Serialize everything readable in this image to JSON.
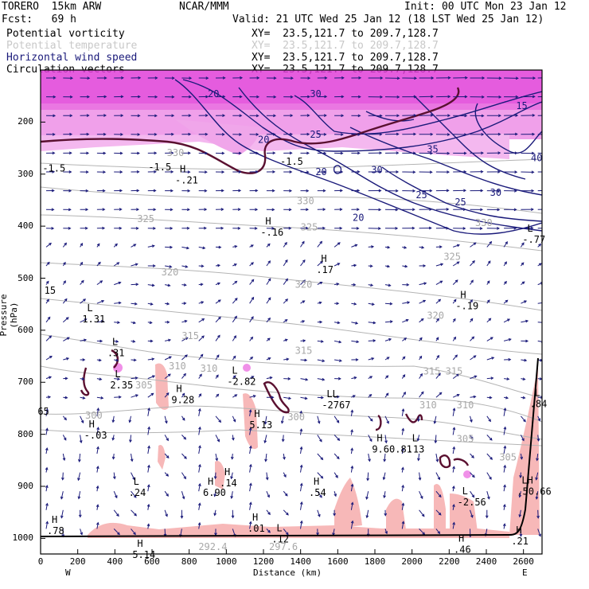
{
  "header": {
    "model": "TORERO  15km ARW",
    "center": "NCAR/MMM",
    "init": "Init: 00 UTC Mon 23 Jan 12",
    "fcst": "Fcst:   69 h",
    "valid": "Valid: 21 UTC Wed 25 Jan 12 (18 LST Wed 25 Jan 12)",
    "fields": [
      {
        "name": "Potential vorticity",
        "xy": "XY=  23.5,121.7 to 209.7,128.7",
        "color": "#000000"
      },
      {
        "name": "Potential temperature",
        "xy": "XY=  23.5,121.7 to 209.7,128.7",
        "color": "#c8c8c8"
      },
      {
        "name": "Horizontal wind speed",
        "xy": "XY=  23.5,121.7 to 209.7,128.7",
        "color": "#1a1a7a"
      },
      {
        "name": "Circulation vectors",
        "xy": "XY=  23.5,121.7 to 209.7,128.7",
        "color": "#000000"
      }
    ]
  },
  "chart_data": {
    "type": "cross-section",
    "ylabel": "Pressure (hPa)",
    "xlabel": "Distance (km)",
    "x_ticks": [
      0,
      200,
      400,
      600,
      800,
      1000,
      1200,
      1400,
      1600,
      1800,
      2000,
      2200,
      2400,
      2600
    ],
    "y_ticks": [
      200,
      300,
      400,
      500,
      600,
      700,
      800,
      900,
      1000
    ],
    "xlim": [
      0,
      2700
    ],
    "ylim": [
      1030,
      100
    ],
    "west_label": "W",
    "east_label": "E",
    "theta_labels": [
      {
        "x": 680,
        "p": 265,
        "t": "330"
      },
      {
        "x": 1380,
        "p": 358,
        "t": "330"
      },
      {
        "x": 2340,
        "p": 400,
        "t": "330"
      },
      {
        "x": 520,
        "p": 392,
        "t": "325"
      },
      {
        "x": 1400,
        "p": 408,
        "t": "325"
      },
      {
        "x": 2170,
        "p": 465,
        "t": "325"
      },
      {
        "x": 650,
        "p": 495,
        "t": "320"
      },
      {
        "x": 1370,
        "p": 518,
        "t": "320"
      },
      {
        "x": 2080,
        "p": 578,
        "t": "320"
      },
      {
        "x": 760,
        "p": 617,
        "t": "315"
      },
      {
        "x": 1370,
        "p": 645,
        "t": "315"
      },
      {
        "x": 2060,
        "p": 685,
        "t": "315"
      },
      {
        "x": 2180,
        "p": 685,
        "t": "315"
      },
      {
        "x": 690,
        "p": 675,
        "t": "310"
      },
      {
        "x": 860,
        "p": 680,
        "t": "310"
      },
      {
        "x": 2040,
        "p": 750,
        "t": "310"
      },
      {
        "x": 2240,
        "p": 750,
        "t": "310"
      },
      {
        "x": 510,
        "p": 712,
        "t": "305"
      },
      {
        "x": 2240,
        "p": 815,
        "t": "305"
      },
      {
        "x": 2470,
        "p": 850,
        "t": "305"
      },
      {
        "x": 240,
        "p": 770,
        "t": "300"
      },
      {
        "x": 1330,
        "p": 773,
        "t": "300"
      },
      {
        "x": 850,
        "p": 1022,
        "t": "292.4"
      },
      {
        "x": 1230,
        "p": 1022,
        "t": "297.6"
      }
    ],
    "wind_labels": [
      {
        "x": 900,
        "p": 152,
        "t": "20"
      },
      {
        "x": 1450,
        "p": 152,
        "t": "30"
      },
      {
        "x": 1170,
        "p": 240,
        "t": "20"
      },
      {
        "x": 1450,
        "p": 230,
        "t": "25"
      },
      {
        "x": 1480,
        "p": 302,
        "t": "20"
      },
      {
        "x": 2080,
        "p": 258,
        "t": "35"
      },
      {
        "x": 1780,
        "p": 298,
        "t": "30"
      },
      {
        "x": 1680,
        "p": 390,
        "t": "20"
      },
      {
        "x": 2020,
        "p": 346,
        "t": "25"
      },
      {
        "x": 2230,
        "p": 360,
        "t": "25"
      },
      {
        "x": 2420,
        "p": 342,
        "t": "30"
      },
      {
        "x": 2640,
        "p": 275,
        "t": "40"
      },
      {
        "x": 2560,
        "p": 175,
        "t": "15"
      }
    ],
    "pv_labels": [
      {
        "x": 10,
        "p": 295,
        "t": "-1.5"
      },
      {
        "x": 580,
        "p": 293,
        "t": "-1.5"
      },
      {
        "x": 1290,
        "p": 282,
        "t": "-1.5"
      },
      {
        "x": 20,
        "p": 530,
        "t": "15"
      }
    ],
    "hl_marks": [
      {
        "x": 750,
        "p": 318,
        "t": "H",
        "v": "-.21"
      },
      {
        "x": 1210,
        "p": 418,
        "t": "H",
        "v": "-.16"
      },
      {
        "x": 1510,
        "p": 490,
        "t": "H",
        "v": ".17"
      },
      {
        "x": 2260,
        "p": 560,
        "t": "H",
        "v": "-.19"
      },
      {
        "x": 2620,
        "p": 432,
        "t": "L",
        "v": "-.77"
      },
      {
        "x": 250,
        "p": 585,
        "t": "L",
        "v": "1.31"
      },
      {
        "x": 400,
        "p": 712,
        "t": "L",
        "v": "2.35"
      },
      {
        "x": 1030,
        "p": 705,
        "t": "L",
        "v": "-2.82"
      },
      {
        "x": 730,
        "p": 740,
        "t": "H",
        "v": "9.28"
      },
      {
        "x": 1150,
        "p": 788,
        "t": "H",
        "v": "5.13"
      },
      {
        "x": 1540,
        "p": 750,
        "t": "LL",
        "v": "-2767"
      },
      {
        "x": 260,
        "p": 808,
        "t": "H",
        "v": "-.03"
      },
      {
        "x": 1810,
        "p": 835,
        "t": "H",
        "v": "9.60.81"
      },
      {
        "x": 2000,
        "p": 835,
        "t": "L",
        "v": ".13"
      },
      {
        "x": 500,
        "p": 918,
        "t": "L",
        "v": ".24"
      },
      {
        "x": 900,
        "p": 918,
        "t": "H",
        "v": "6.90"
      },
      {
        "x": 990,
        "p": 900,
        "t": "H",
        "v": ".14"
      },
      {
        "x": 1470,
        "p": 918,
        "t": "H",
        "v": ".54"
      },
      {
        "x": 2270,
        "p": 937,
        "t": "L",
        "v": "-2.56"
      },
      {
        "x": 2590,
        "p": 916,
        "t": "LH",
        "v": ".50.66"
      },
      {
        "x": 2660,
        "p": 748,
        "t": "L",
        "v": ".84"
      },
      {
        "x": 60,
        "p": 992,
        "t": "H",
        "v": ".78"
      },
      {
        "x": 1140,
        "p": 987,
        "t": "H",
        "v": ".01"
      },
      {
        "x": 1270,
        "p": 1008,
        "t": "L",
        "v": ".12"
      },
      {
        "x": 2250,
        "p": 1028,
        "t": "H",
        "v": ".46"
      },
      {
        "x": 2560,
        "p": 1012,
        "t": "H",
        "v": ".21"
      },
      {
        "x": 520,
        "p": 1038,
        "t": "H",
        "v": "5.14"
      },
      {
        "x": 385,
        "p": 650,
        "t": "L",
        "v": ".31"
      },
      {
        "x": 10,
        "p": 762,
        "t": "",
        "v": "65"
      }
    ],
    "colors": {
      "wind": "#1a1a7a",
      "theta": "#b4b4b4",
      "pv": "#5a1030",
      "pv_fill_low": "#f7b8b8",
      "pv_fill_high": "#e24ae0",
      "frame": "#000000"
    }
  }
}
